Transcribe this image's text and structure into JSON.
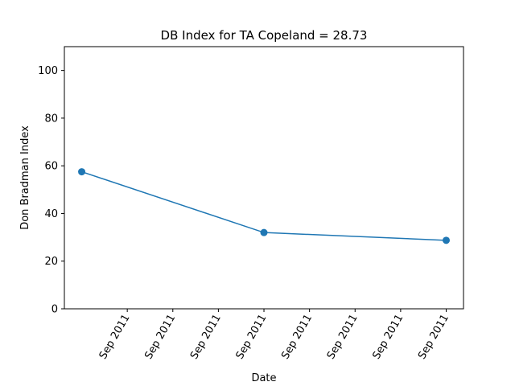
{
  "chart_data": {
    "type": "line",
    "title": "DB Index for TA Copeland = 28.73",
    "xlabel": "Date",
    "ylabel": "Don Bradman Index",
    "x": [
      "2011-09-06",
      "2011-09-10",
      "2011-09-14"
    ],
    "series": [
      {
        "values": [
          57.5,
          32.0,
          28.73
        ]
      }
    ],
    "ylim": [
      0,
      110
    ],
    "yticks": [
      0,
      20,
      40,
      60,
      80,
      100
    ],
    "xlim": [
      "2011-09-05 14:52",
      "2011-09-14 09:07"
    ],
    "xticks": [
      "2011-09-07",
      "2011-09-08",
      "2011-09-09",
      "2011-09-10",
      "2011-09-11",
      "2011-09-12",
      "2011-09-13",
      "2011-09-14"
    ],
    "xtick_labels": [
      "Sep 2011",
      "Sep 2011",
      "Sep 2011",
      "Sep 2011",
      "Sep 2011",
      "Sep 2011",
      "Sep 2011",
      "Sep 2011"
    ],
    "line_color": "#1f77b4",
    "grid": false,
    "legend": "none"
  }
}
